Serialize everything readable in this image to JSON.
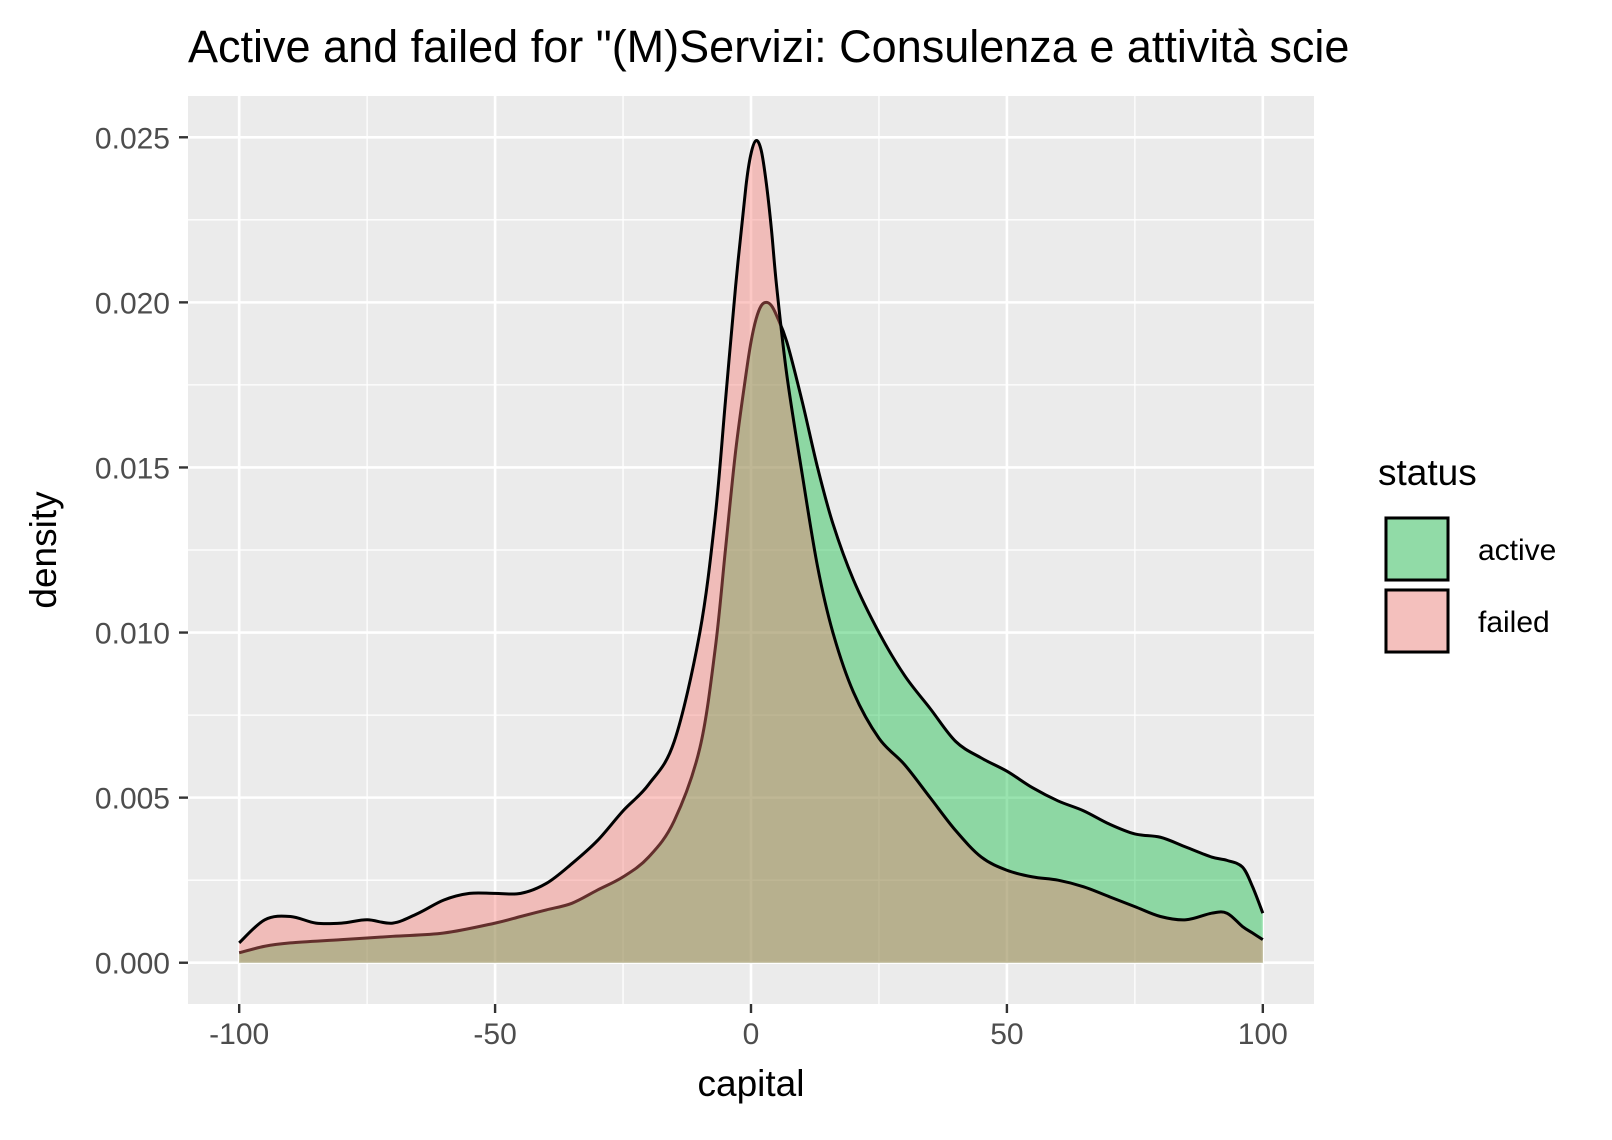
{
  "chart_data": {
    "type": "area",
    "title": "Active and failed for \"(M)Servizi: Consulenza e attività scie",
    "xlabel": "capital",
    "ylabel": "density",
    "xlim": [
      -110,
      110
    ],
    "ylim": [
      -0.00125,
      0.02625
    ],
    "x_ticks": [
      -100,
      -50,
      0,
      50,
      100
    ],
    "x_tick_labels": [
      "-100",
      "-50",
      "0",
      "50",
      "100"
    ],
    "y_ticks": [
      0,
      0.005,
      0.01,
      0.015,
      0.02,
      0.025
    ],
    "y_tick_labels": [
      "0.000",
      "0.005",
      "0.010",
      "0.015",
      "0.020",
      "0.025"
    ],
    "grid": true,
    "legend": {
      "title": "status",
      "position": "right"
    },
    "series": [
      {
        "name": "active",
        "color": "#00BA38",
        "fill_hex": "#91dba7",
        "x": [
          -100,
          -95,
          -90,
          -80,
          -70,
          -60,
          -50,
          -45,
          -40,
          -35,
          -30,
          -25,
          -20,
          -15,
          -10,
          -7,
          -5,
          -3,
          -1,
          0,
          1,
          2,
          3,
          4,
          5,
          7,
          10,
          13,
          16,
          20,
          25,
          30,
          35,
          40,
          45,
          50,
          55,
          60,
          65,
          70,
          75,
          80,
          85,
          90,
          93,
          96,
          98,
          100
        ],
        "y": [
          0.0003,
          0.0005,
          0.0006,
          0.0007,
          0.0008,
          0.0009,
          0.0012,
          0.0014,
          0.0016,
          0.0018,
          0.0022,
          0.0026,
          0.0032,
          0.0043,
          0.0065,
          0.0095,
          0.0125,
          0.0155,
          0.0178,
          0.0188,
          0.0195,
          0.0199,
          0.02,
          0.0199,
          0.0196,
          0.0188,
          0.017,
          0.015,
          0.0133,
          0.0116,
          0.01,
          0.0087,
          0.0077,
          0.0067,
          0.0062,
          0.0058,
          0.0053,
          0.0049,
          0.0046,
          0.0042,
          0.0039,
          0.0038,
          0.0035,
          0.0032,
          0.0031,
          0.0029,
          0.0023,
          0.0015
        ]
      },
      {
        "name": "failed",
        "color": "#F8766D",
        "fill_hex": "#f4c0bd",
        "x": [
          -100,
          -95,
          -90,
          -85,
          -80,
          -75,
          -70,
          -65,
          -60,
          -55,
          -50,
          -45,
          -40,
          -35,
          -30,
          -25,
          -20,
          -15,
          -10,
          -7,
          -5,
          -3,
          -1,
          0,
          1,
          2,
          3,
          4,
          5,
          7,
          10,
          13,
          16,
          20,
          25,
          30,
          35,
          40,
          45,
          50,
          55,
          60,
          65,
          70,
          75,
          80,
          85,
          90,
          93,
          96,
          98,
          100
        ],
        "y": [
          0.0006,
          0.0013,
          0.0014,
          0.0012,
          0.0012,
          0.0013,
          0.0012,
          0.0015,
          0.0019,
          0.0021,
          0.0021,
          0.0021,
          0.0024,
          0.003,
          0.0037,
          0.0046,
          0.0054,
          0.0067,
          0.01,
          0.0135,
          0.017,
          0.0205,
          0.0235,
          0.0245,
          0.0249,
          0.0246,
          0.0236,
          0.0222,
          0.0205,
          0.0178,
          0.0148,
          0.012,
          0.01,
          0.0082,
          0.0068,
          0.006,
          0.005,
          0.004,
          0.0032,
          0.0028,
          0.0026,
          0.0025,
          0.0023,
          0.002,
          0.0017,
          0.0014,
          0.0013,
          0.0015,
          0.0015,
          0.0011,
          0.0009,
          0.0007
        ]
      }
    ]
  }
}
